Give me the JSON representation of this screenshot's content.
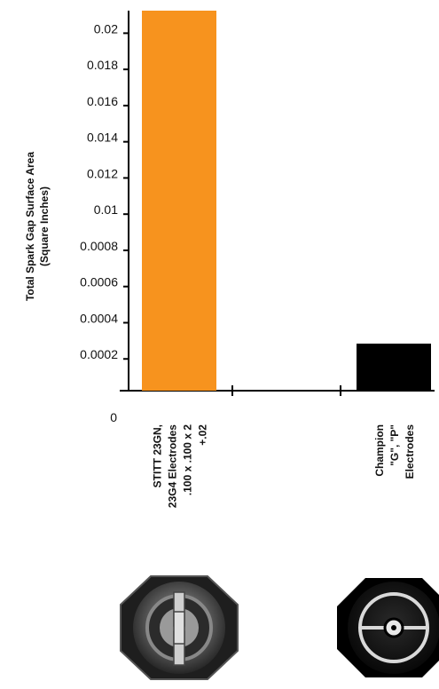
{
  "chart_data": {
    "type": "bar",
    "title": "",
    "ylabel": [
      "Total Spark Gap Surface Area",
      "(Square Inches)"
    ],
    "y_ticks": [
      "0",
      "0.0002",
      "0.0004",
      "0.0006",
      "0.0008",
      "0.01",
      "0.012",
      "0.014",
      "0.016",
      "0.018",
      "0.02"
    ],
    "ylim": [
      0,
      10.5
    ],
    "categories": [
      [
        "STITT 23GN,",
        "23G4 Electrodes",
        ".100 x .100 x 2",
        "+.02"
      ],
      [
        "Champion",
        "\"G\", \"P\"",
        "Electrodes"
      ]
    ],
    "values": [
      10.5,
      1.3
    ],
    "colors": [
      "#f7931e",
      "#000000"
    ]
  }
}
